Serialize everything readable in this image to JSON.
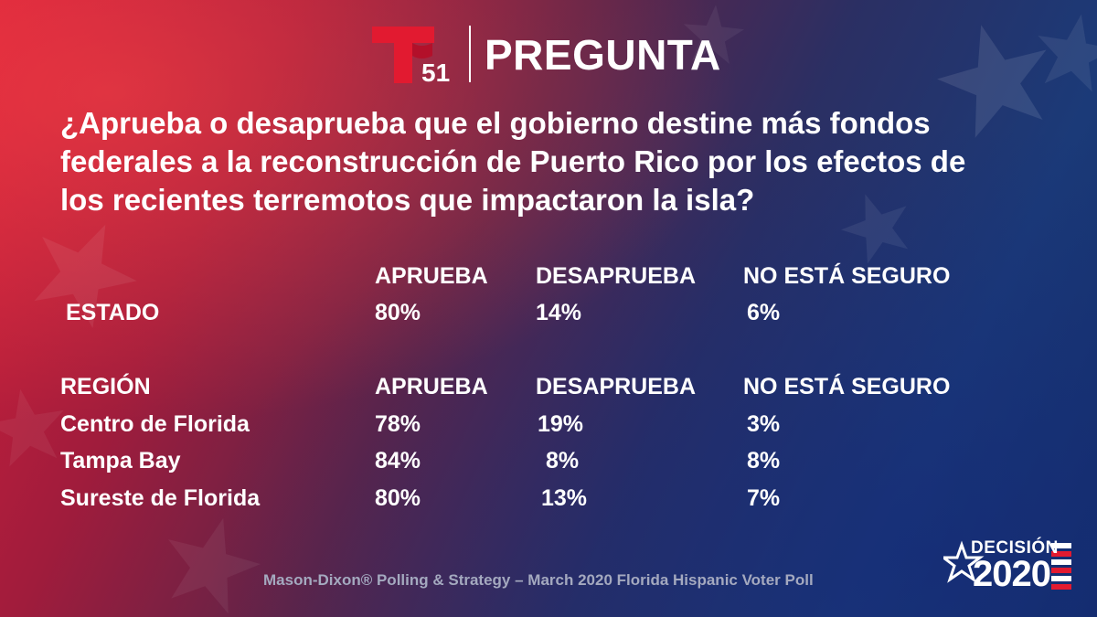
{
  "colors": {
    "accent_red": "#e21a30",
    "text_white": "#ffffff",
    "footer_gray": "#a4a9bf",
    "flag_blue": "#1b3a78"
  },
  "header": {
    "logo_icon": "telemundo-51-logo",
    "logo_number": "51",
    "title": "PREGUNTA"
  },
  "question": "¿Aprueba o desaprueba que el gobierno destine más fondos federales a la reconstrucción de Puerto Rico por los efectos de los recientes terremotos que impactaron la isla?",
  "state_table": {
    "columns": [
      "APRUEBA",
      "DESAPRUEBA",
      "NO ESTÁ SEGURO"
    ],
    "rows": [
      {
        "label": "ESTADO",
        "values": [
          "80%",
          "14%",
          "6%"
        ]
      }
    ]
  },
  "region_table": {
    "header_label": "REGIÓN",
    "columns": [
      "APRUEBA",
      "DESAPRUEBA",
      "NO ESTÁ SEGURO"
    ],
    "rows": [
      {
        "label": "Centro de Florida",
        "values": [
          "78%",
          "19%",
          "3%"
        ]
      },
      {
        "label": "Tampa Bay",
        "values": [
          "84%",
          "8%",
          "8%"
        ]
      },
      {
        "label": "Sureste de Florida",
        "values": [
          "80%",
          "13%",
          "7%"
        ]
      }
    ]
  },
  "footer": {
    "source": "Mason-Dixon® Polling & Strategy – March 2020 Florida Hispanic Voter Poll",
    "brand_icon": "decision-2020-logo",
    "brand_word": "DECISIÓN",
    "brand_year": "2020"
  }
}
